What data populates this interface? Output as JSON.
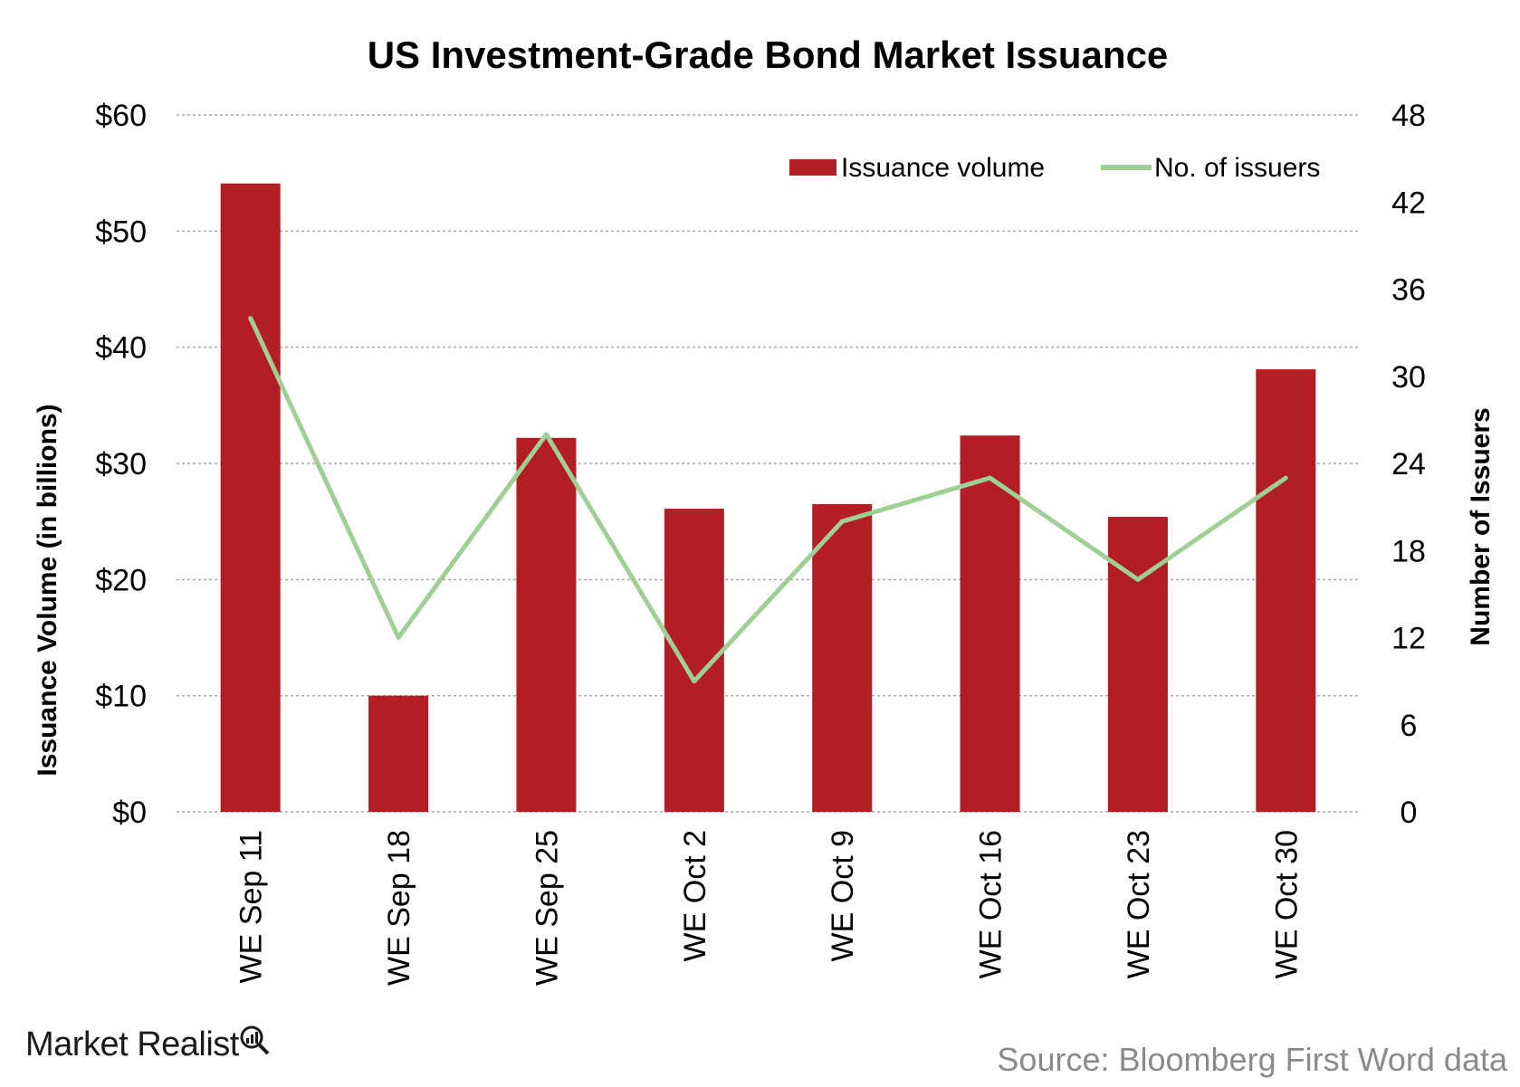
{
  "chart_data": {
    "type": "bar",
    "title": "US Investment-Grade Bond Market Issuance",
    "ylabel": "Issuance Volume (in billions)",
    "y2label": "Number of Issuers",
    "categories": [
      "WE Sep 11",
      "WE Sep 18",
      "WE Sep 25",
      "WE Oct 2",
      "WE Oct 9",
      "WE Oct 16",
      "WE Oct 23",
      "WE Oct 30"
    ],
    "series": [
      {
        "name": "Issuance volume",
        "type": "bar",
        "axis": "left",
        "color": "#b31e24",
        "values": [
          54.1,
          10.0,
          32.2,
          26.1,
          26.5,
          32.4,
          25.4,
          38.1
        ]
      },
      {
        "name": "No. of issuers",
        "type": "line",
        "axis": "right",
        "color": "#9fcf94",
        "values": [
          34,
          12,
          26,
          9,
          20,
          23,
          16,
          23
        ]
      }
    ],
    "ylim": [
      0,
      60
    ],
    "y2lim": [
      0,
      48
    ],
    "yticks": [
      "$0",
      "$10",
      "$20",
      "$30",
      "$40",
      "$50",
      "$60"
    ],
    "y2ticks": [
      "0",
      "6",
      "12",
      "18",
      "24",
      "30",
      "36",
      "42",
      "48"
    ],
    "grid": true,
    "legend_position": "top-right"
  },
  "footer": {
    "brand": "Market Realist",
    "source": "Source: Bloomberg First Word data"
  },
  "colors": {
    "bar": "#b31e24",
    "line": "#9fcf94",
    "grid": "#a6a6a6"
  }
}
